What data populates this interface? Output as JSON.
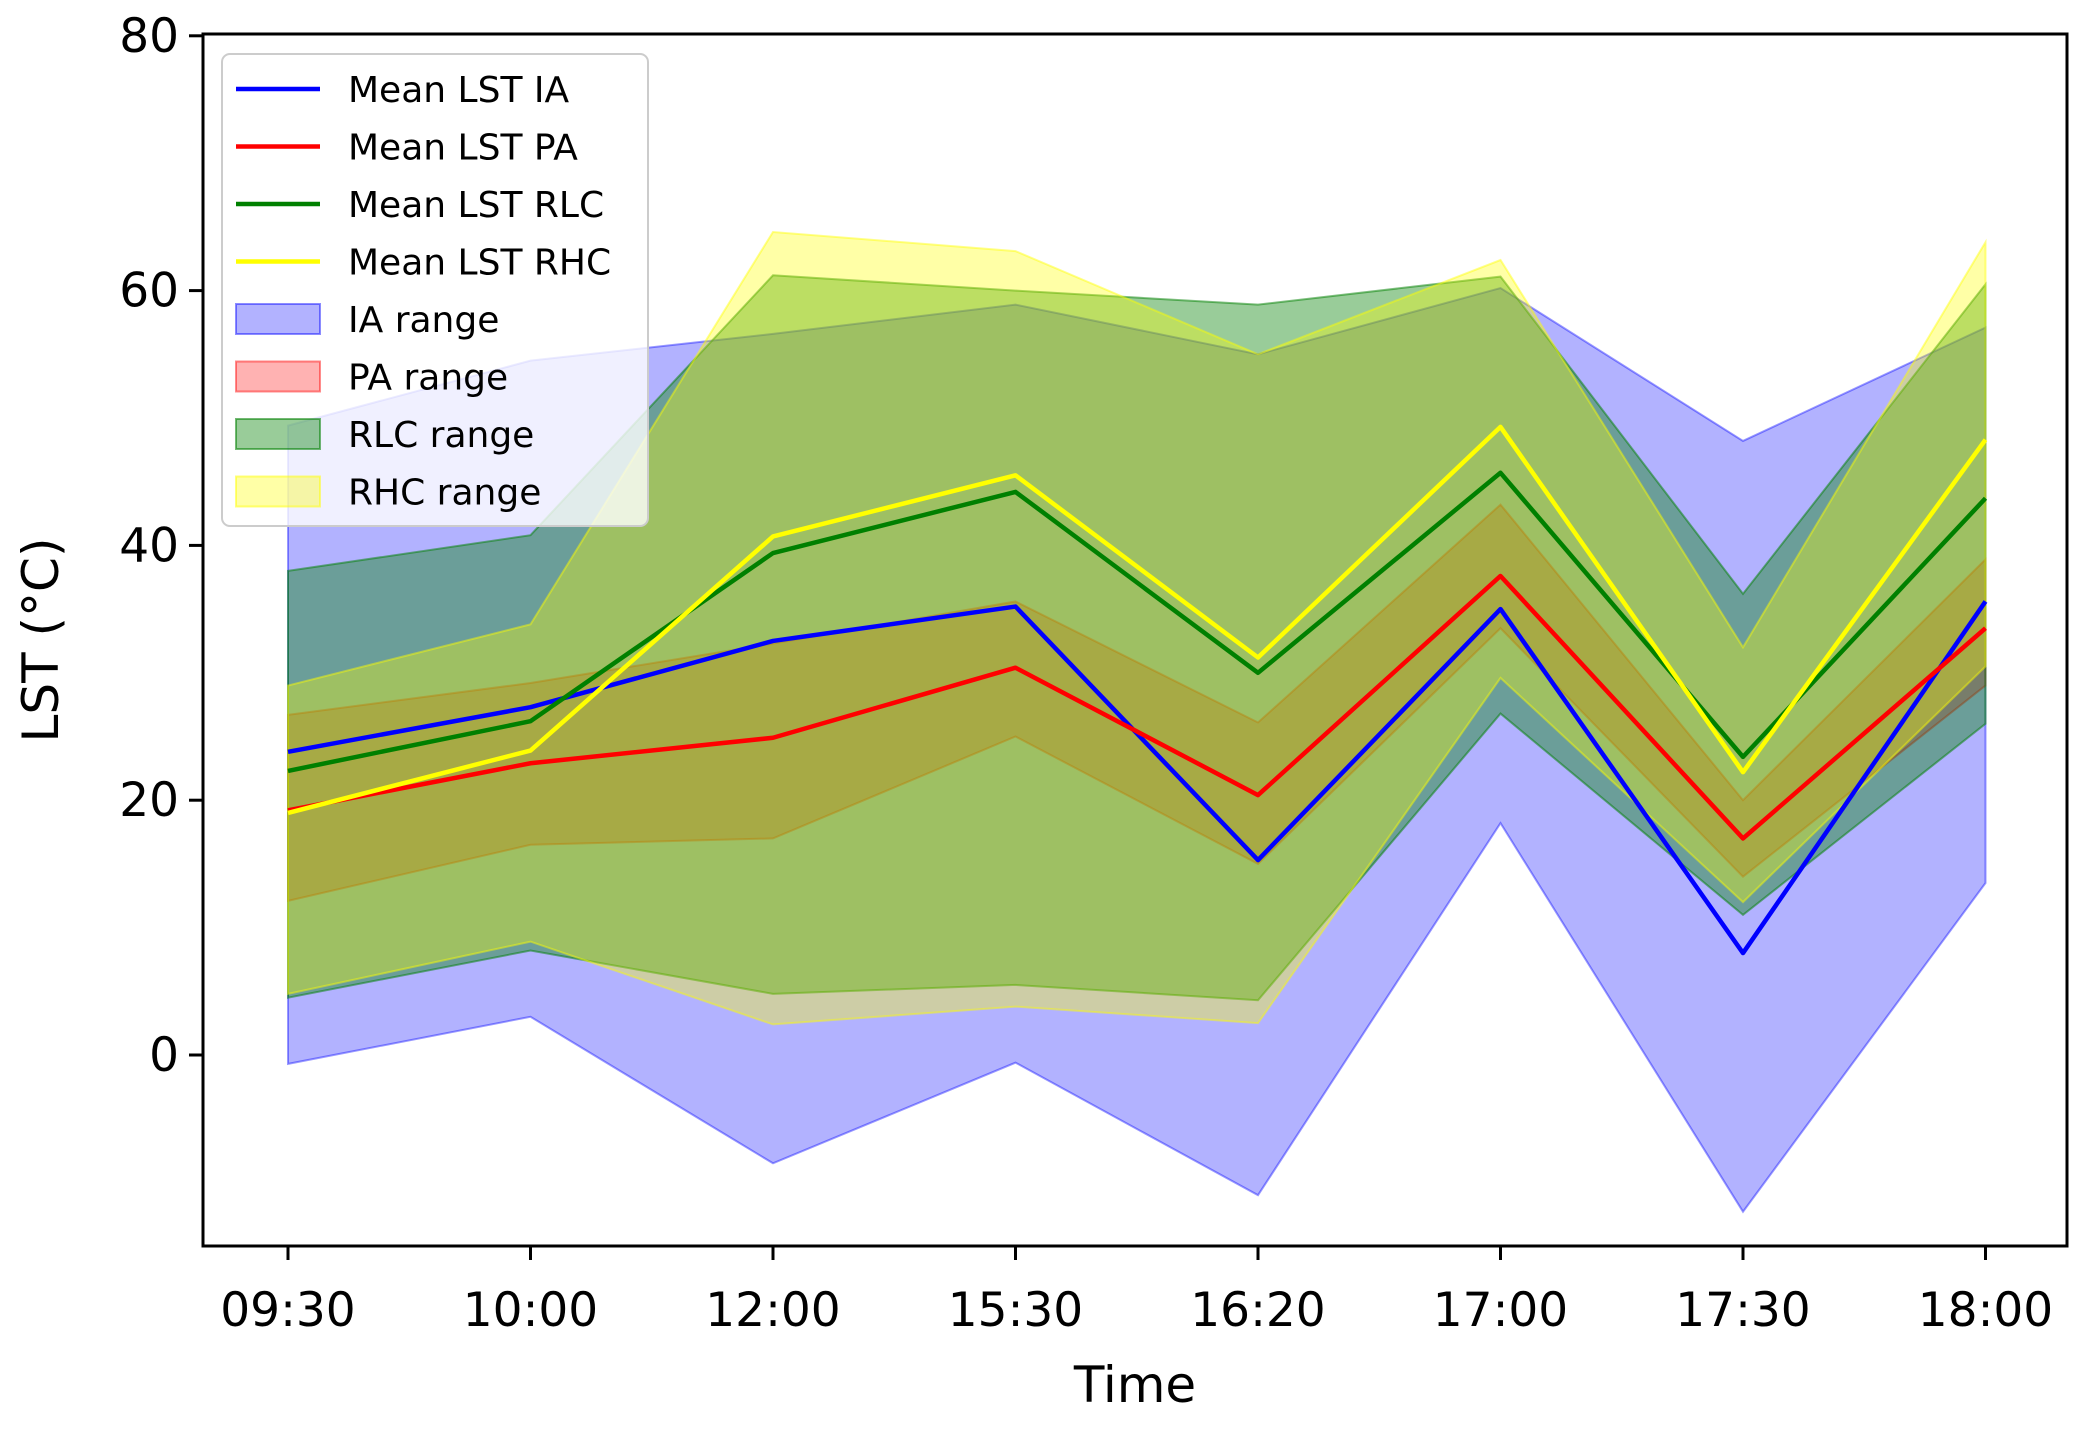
{
  "chart_data": {
    "type": "line",
    "title": "",
    "xlabel": "Time",
    "ylabel": "LST (°C)",
    "categories": [
      "09:30",
      "10:00",
      "12:00",
      "15:30",
      "16:20",
      "17:00",
      "17:30",
      "18:00"
    ],
    "ylim": [
      -15,
      80
    ],
    "yticks": [
      0,
      20,
      40,
      60,
      80
    ],
    "grid": false,
    "legend_position": "upper-left",
    "series": [
      {
        "name": "Mean LST IA",
        "color": "#0000ff",
        "values": [
          23.8,
          27.3,
          32.5,
          35.2,
          15.3,
          35.0,
          8.0,
          35.6
        ]
      },
      {
        "name": "Mean LST PA",
        "color": "#ff0000",
        "values": [
          19.2,
          22.9,
          24.9,
          30.4,
          20.4,
          37.6,
          17.0,
          33.5
        ]
      },
      {
        "name": "Mean LST RLC",
        "color": "#008000",
        "values": [
          22.3,
          26.2,
          39.4,
          44.2,
          30.0,
          45.7,
          23.4,
          43.7
        ]
      },
      {
        "name": "Mean LST RHC",
        "color": "#ffff00",
        "values": [
          19.0,
          23.9,
          40.7,
          45.5,
          31.2,
          49.3,
          22.2,
          48.3
        ]
      }
    ],
    "ranges": [
      {
        "name": "IA range",
        "color": "#0000ff",
        "opacity": 0.3,
        "lower": [
          -0.7,
          3.0,
          -8.5,
          -0.6,
          -11.0,
          18.2,
          -12.3,
          13.5
        ],
        "upper": [
          49.4,
          54.5,
          56.6,
          58.9,
          55.0,
          60.2,
          48.2,
          57.1
        ]
      },
      {
        "name": "PA range",
        "color": "#ff0000",
        "opacity": 0.3,
        "lower": [
          12.1,
          16.5,
          17.0,
          25.0,
          15.0,
          33.5,
          14.0,
          29.0
        ],
        "upper": [
          26.7,
          29.2,
          32.3,
          35.6,
          26.1,
          43.2,
          20.0,
          38.9
        ]
      },
      {
        "name": "RLC range",
        "color": "#008000",
        "opacity": 0.4,
        "lower": [
          4.5,
          8.2,
          4.8,
          5.5,
          4.3,
          26.8,
          11.0,
          26.0
        ],
        "upper": [
          38.0,
          40.8,
          61.2,
          60.0,
          58.9,
          61.1,
          36.2,
          60.5
        ]
      },
      {
        "name": "RHC range",
        "color": "#ffff00",
        "opacity": 0.35,
        "lower": [
          4.8,
          8.9,
          2.4,
          3.8,
          2.5,
          29.6,
          12.0,
          30.5
        ],
        "upper": [
          29.0,
          33.8,
          64.6,
          63.1,
          55.0,
          62.4,
          32.0,
          63.8
        ]
      }
    ]
  }
}
